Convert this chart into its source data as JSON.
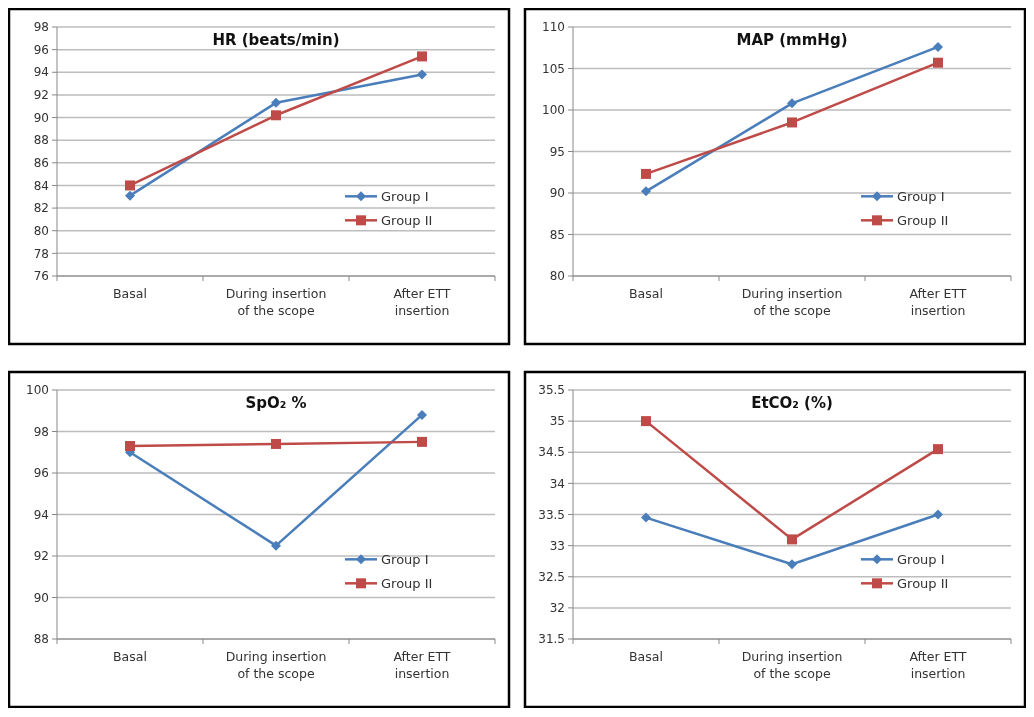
{
  "chart_data": [
    {
      "type": "line",
      "title": "HR (beats/min)",
      "categories": [
        "Basal",
        "During insertion of the scope",
        "After ETT insertion"
      ],
      "ylim": [
        76,
        98
      ],
      "yticks": [
        76,
        78,
        80,
        82,
        84,
        86,
        88,
        90,
        92,
        94,
        96,
        98
      ],
      "grid": "y",
      "legend": "right",
      "series": [
        {
          "name": "Group I",
          "color": "#4a7ebb",
          "marker": "diamond",
          "values": [
            83.1,
            91.3,
            93.8
          ]
        },
        {
          "name": "Group II",
          "color": "#be4b48",
          "marker": "square",
          "values": [
            84.0,
            90.2,
            95.4
          ]
        }
      ]
    },
    {
      "type": "line",
      "title": "MAP (mmHg)",
      "categories": [
        "Basal",
        "During insertion of the scope",
        "After ETT insertion"
      ],
      "ylim": [
        80,
        110
      ],
      "yticks": [
        80,
        85,
        90,
        95,
        100,
        105,
        110
      ],
      "grid": "y",
      "legend": "right",
      "series": [
        {
          "name": "Group I",
          "color": "#4a7ebb",
          "marker": "diamond",
          "values": [
            90.2,
            100.8,
            107.6
          ]
        },
        {
          "name": "Group II",
          "color": "#be4b48",
          "marker": "square",
          "values": [
            92.3,
            98.5,
            105.7
          ]
        }
      ]
    },
    {
      "type": "line",
      "title": "SpO₂ %",
      "categories": [
        "Basal",
        "During insertion of the scope",
        "After ETT insertion"
      ],
      "ylim": [
        88,
        100
      ],
      "yticks": [
        88,
        90,
        92,
        94,
        96,
        98,
        100
      ],
      "grid": "y",
      "legend": "right",
      "series": [
        {
          "name": "Group I",
          "color": "#4a7ebb",
          "marker": "diamond",
          "values": [
            97.0,
            92.5,
            98.8
          ]
        },
        {
          "name": "Group II",
          "color": "#be4b48",
          "marker": "square",
          "values": [
            97.3,
            97.4,
            97.5
          ]
        }
      ]
    },
    {
      "type": "line",
      "title": "EtCO₂ (%)",
      "categories": [
        "Basal",
        "During insertion of the scope",
        "After ETT insertion"
      ],
      "ylim": [
        31.5,
        35.5
      ],
      "yticks": [
        31.5,
        32,
        32.5,
        33,
        33.5,
        34,
        34.5,
        35,
        35.5
      ],
      "grid": "y",
      "legend": "right",
      "series": [
        {
          "name": "Group I",
          "color": "#4a7ebb",
          "marker": "diamond",
          "values": [
            33.45,
            32.7,
            33.5
          ]
        },
        {
          "name": "Group II",
          "color": "#be4b48",
          "marker": "square",
          "values": [
            35.0,
            33.1,
            34.55
          ]
        }
      ]
    }
  ]
}
